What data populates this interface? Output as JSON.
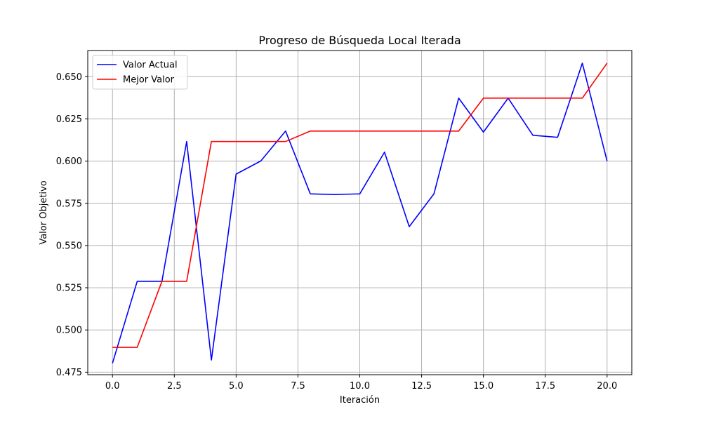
{
  "chart_data": {
    "type": "line",
    "title": "Progreso de Búsqueda Local Iterada",
    "xlabel": "Iteración",
    "ylabel": "Valor Objetivo",
    "xlim": [
      -1,
      21
    ],
    "ylim": [
      0.4735,
      0.6655
    ],
    "xticks": [
      0,
      2.5,
      5,
      7.5,
      10,
      12.5,
      15,
      17.5,
      20
    ],
    "xtick_labels": [
      "0.0",
      "2.5",
      "5.0",
      "7.5",
      "10.0",
      "12.5",
      "15.0",
      "17.5",
      "20.0"
    ],
    "yticks": [
      0.475,
      0.5,
      0.525,
      0.55,
      0.575,
      0.6,
      0.625,
      0.65
    ],
    "ytick_labels": [
      "0.475",
      "0.500",
      "0.525",
      "0.550",
      "0.575",
      "0.600",
      "0.625",
      "0.650"
    ],
    "grid": true,
    "legend_position": "top-left",
    "x": [
      0,
      1,
      2,
      3,
      4,
      5,
      6,
      7,
      8,
      9,
      10,
      11,
      12,
      13,
      14,
      15,
      16,
      17,
      18,
      19,
      20
    ],
    "series": [
      {
        "name": "Valor Actual",
        "color": "#0000ff",
        "values": [
          0.4803,
          0.5288,
          0.5288,
          0.6116,
          0.4822,
          0.5923,
          0.6001,
          0.6178,
          0.5806,
          0.5802,
          0.5806,
          0.6053,
          0.5612,
          0.5806,
          0.6373,
          0.6172,
          0.6373,
          0.6153,
          0.6141,
          0.658,
          0.6
        ]
      },
      {
        "name": "Mejor Valor",
        "color": "#ff0000",
        "values": [
          0.4897,
          0.4897,
          0.5288,
          0.5288,
          0.6116,
          0.6116,
          0.6116,
          0.6116,
          0.6178,
          0.6178,
          0.6178,
          0.6178,
          0.6178,
          0.6178,
          0.6178,
          0.6373,
          0.6373,
          0.6373,
          0.6373,
          0.6373,
          0.658
        ]
      }
    ]
  }
}
